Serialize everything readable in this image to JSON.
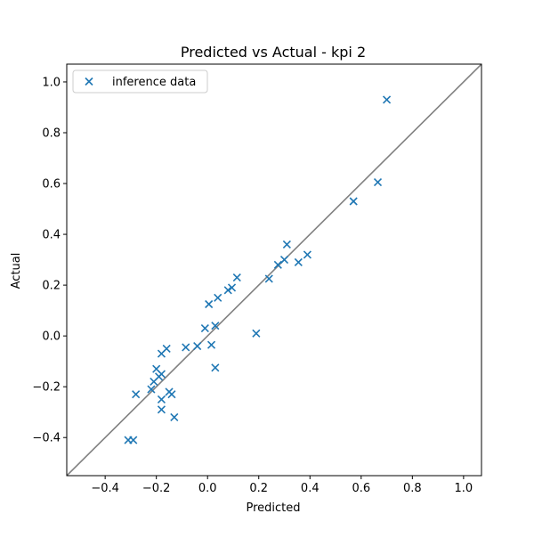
{
  "chart_data": {
    "type": "scatter",
    "title": "Predicted vs Actual - kpi 2",
    "xlabel": "Predicted",
    "ylabel": "Actual",
    "xlim": [
      -0.55,
      1.07
    ],
    "ylim": [
      -0.55,
      1.07
    ],
    "xticks": [
      -0.4,
      -0.2,
      0.0,
      0.2,
      0.4,
      0.6,
      0.8,
      1.0
    ],
    "yticks": [
      -0.4,
      -0.2,
      0.0,
      0.2,
      0.4,
      0.6,
      0.8,
      1.0
    ],
    "xtick_labels": [
      "−0.4",
      "−0.2",
      "0.0",
      "0.2",
      "0.4",
      "0.6",
      "0.8",
      "1.0"
    ],
    "ytick_labels": [
      "−0.4",
      "−0.2",
      "0.0",
      "0.2",
      "0.4",
      "0.6",
      "0.8",
      "1.0"
    ],
    "grid": false,
    "legend_position": "top-left",
    "colors": {
      "points": "#1f77b4",
      "identity_line": "#808080"
    },
    "reference_line": {
      "type": "identity",
      "from": [
        -0.55,
        -0.55
      ],
      "to": [
        1.07,
        1.07
      ]
    },
    "series": [
      {
        "name": "inference data",
        "marker": "x",
        "points": [
          [
            -0.31,
            -0.41
          ],
          [
            -0.29,
            -0.41
          ],
          [
            -0.28,
            -0.23
          ],
          [
            -0.22,
            -0.21
          ],
          [
            -0.21,
            -0.18
          ],
          [
            -0.2,
            -0.13
          ],
          [
            -0.19,
            -0.16
          ],
          [
            -0.18,
            -0.15
          ],
          [
            -0.18,
            -0.07
          ],
          [
            -0.18,
            -0.25
          ],
          [
            -0.18,
            -0.29
          ],
          [
            -0.16,
            -0.05
          ],
          [
            -0.15,
            -0.22
          ],
          [
            -0.14,
            -0.23
          ],
          [
            -0.13,
            -0.32
          ],
          [
            -0.085,
            -0.045
          ],
          [
            -0.04,
            -0.04
          ],
          [
            -0.01,
            0.03
          ],
          [
            0.005,
            0.125
          ],
          [
            0.015,
            -0.035
          ],
          [
            0.03,
            0.04
          ],
          [
            0.03,
            -0.125
          ],
          [
            0.04,
            0.15
          ],
          [
            0.08,
            0.18
          ],
          [
            0.095,
            0.19
          ],
          [
            0.115,
            0.23
          ],
          [
            0.19,
            0.01
          ],
          [
            0.24,
            0.225
          ],
          [
            0.275,
            0.28
          ],
          [
            0.3,
            0.3
          ],
          [
            0.31,
            0.36
          ],
          [
            0.355,
            0.29
          ],
          [
            0.39,
            0.32
          ],
          [
            0.57,
            0.53
          ],
          [
            0.665,
            0.605
          ],
          [
            0.7,
            0.93
          ]
        ]
      }
    ]
  }
}
